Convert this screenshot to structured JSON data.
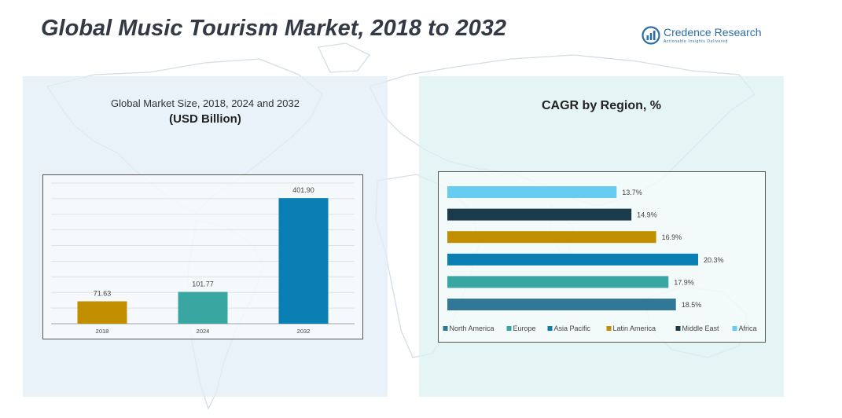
{
  "header": {
    "title": "Global Music Tourism Market, 2018 to 2032",
    "brand_name": "Credence Research",
    "brand_tagline": "Actionable Insights Delivered"
  },
  "left_panel": {
    "subtitle": "Global Market Size, 2018, 2024 and 2032",
    "unit": "(USD Billion)"
  },
  "right_panel": {
    "title": "CAGR by Region, %"
  },
  "colors": {
    "map": "#d3dde6",
    "north_america": "#317796",
    "europe": "#3aa6a2",
    "asia_pacific": "#0a7fb4",
    "latin_america": "#c18e00",
    "middle_east": "#1b3a4b",
    "africa": "#66ccf1"
  },
  "chart_data": [
    {
      "type": "bar",
      "categories": [
        "2018",
        "2024",
        "2032"
      ],
      "values": [
        71.63,
        101.77,
        401.9
      ],
      "value_labels": [
        "71.63",
        "101.77",
        "401.90"
      ],
      "bar_colors": [
        "#c18e00",
        "#3aa6a2",
        "#0a7fb4"
      ],
      "ylim": [
        0,
        450
      ],
      "grid": true,
      "title": "Global Market Size, 2018, 2024 and 2032",
      "ylabel": "(USD Billion)"
    },
    {
      "type": "bar",
      "orientation": "horizontal",
      "title": "CAGR by Region, %",
      "series": [
        {
          "name": "North America",
          "value": 18.5,
          "label": "18.5%",
          "color": "#317796"
        },
        {
          "name": "Europe",
          "value": 17.9,
          "label": "17.9%",
          "color": "#3aa6a2"
        },
        {
          "name": "Asia Pacific",
          "value": 20.3,
          "label": "20.3%",
          "color": "#0a7fb4"
        },
        {
          "name": "Latin America",
          "value": 16.9,
          "label": "16.9%",
          "color": "#c18e00"
        },
        {
          "name": "Middle East",
          "value": 14.9,
          "label": "14.9%",
          "color": "#1b3a4b"
        },
        {
          "name": "Africa",
          "value": 13.7,
          "label": "13.7%",
          "color": "#66ccf1"
        }
      ],
      "xlim": [
        0,
        20.3
      ],
      "legend": "bottom"
    }
  ]
}
